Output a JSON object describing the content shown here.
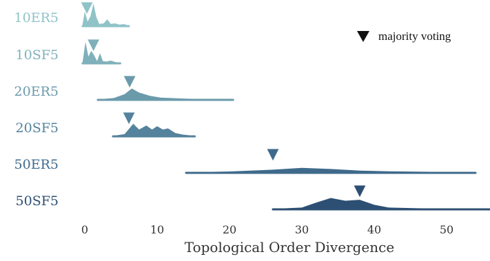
{
  "chart_data": {
    "type": "ridgeline",
    "xlabel": "Topological Order Divergence",
    "xlim": [
      -2,
      56
    ],
    "xticks": [
      0,
      10,
      20,
      30,
      40,
      50
    ],
    "legend": {
      "label": "majority voting",
      "marker": "triangle-down",
      "placement": "top-right"
    },
    "series": [
      {
        "name": "10ER5",
        "color": "#8fc3c8",
        "range": [
          -0.3,
          6.1
        ],
        "majority_voting": 0.3,
        "density": [
          [
            -0.3,
            0.08
          ],
          [
            0,
            0.65
          ],
          [
            0.4,
            0.2
          ],
          [
            0.8,
            0.45
          ],
          [
            1.2,
            1.0
          ],
          [
            1.6,
            0.4
          ],
          [
            2.0,
            0.1
          ],
          [
            2.6,
            0.12
          ],
          [
            3.1,
            0.3
          ],
          [
            3.6,
            0.1
          ],
          [
            4.2,
            0.12
          ],
          [
            4.8,
            0.07
          ],
          [
            5.4,
            0.09
          ],
          [
            6.1,
            0.03
          ]
        ]
      },
      {
        "name": "10SF5",
        "color": "#7fb1ba",
        "range": [
          -0.3,
          4.9
        ],
        "majority_voting": 1.2,
        "density": [
          [
            -0.3,
            0.05
          ],
          [
            0.1,
            0.95
          ],
          [
            0.5,
            0.3
          ],
          [
            0.9,
            0.55
          ],
          [
            1.3,
            0.35
          ],
          [
            1.7,
            0.1
          ],
          [
            2.1,
            0.45
          ],
          [
            2.5,
            0.1
          ],
          [
            3.0,
            0.08
          ],
          [
            3.6,
            0.12
          ],
          [
            4.2,
            0.06
          ],
          [
            4.9,
            0.02
          ]
        ]
      },
      {
        "name": "20ER5",
        "color": "#6b9aab",
        "range": [
          1.8,
          20.5
        ],
        "majority_voting": 6.2,
        "density": [
          [
            1.8,
            0.02
          ],
          [
            4.0,
            0.08
          ],
          [
            5.5,
            0.25
          ],
          [
            6.5,
            0.5
          ],
          [
            7.5,
            0.32
          ],
          [
            9,
            0.18
          ],
          [
            10.5,
            0.1
          ],
          [
            12,
            0.08
          ],
          [
            14,
            0.05
          ],
          [
            16,
            0.04
          ],
          [
            18,
            0.03
          ],
          [
            20.5,
            0.02
          ]
        ]
      },
      {
        "name": "20SF5",
        "color": "#55829c",
        "range": [
          3.9,
          15.2
        ],
        "majority_voting": 6.1,
        "density": [
          [
            3.9,
            0.02
          ],
          [
            5.5,
            0.1
          ],
          [
            6.7,
            0.55
          ],
          [
            7.5,
            0.3
          ],
          [
            8.5,
            0.48
          ],
          [
            9.3,
            0.3
          ],
          [
            10.0,
            0.45
          ],
          [
            10.8,
            0.3
          ],
          [
            11.5,
            0.35
          ],
          [
            12.5,
            0.15
          ],
          [
            13.5,
            0.08
          ],
          [
            15.2,
            0.02
          ]
        ]
      },
      {
        "name": "50ER5",
        "color": "#3f6a8b",
        "range": [
          14,
          54
        ],
        "majority_voting": 26,
        "density": [
          [
            14,
            0.02
          ],
          [
            20,
            0.06
          ],
          [
            26,
            0.14
          ],
          [
            30,
            0.22
          ],
          [
            34,
            0.17
          ],
          [
            38,
            0.1
          ],
          [
            42,
            0.07
          ],
          [
            46,
            0.05
          ],
          [
            50,
            0.04
          ],
          [
            54,
            0.02
          ]
        ]
      },
      {
        "name": "50SF5",
        "color": "#2d4f73",
        "range": [
          26,
          57
        ],
        "majority_voting": 38,
        "density": [
          [
            26,
            0.02
          ],
          [
            30,
            0.08
          ],
          [
            32,
            0.3
          ],
          [
            34,
            0.5
          ],
          [
            36,
            0.38
          ],
          [
            38,
            0.42
          ],
          [
            40,
            0.2
          ],
          [
            42,
            0.08
          ],
          [
            46,
            0.05
          ],
          [
            50,
            0.03
          ],
          [
            57,
            0.01
          ]
        ]
      }
    ]
  }
}
